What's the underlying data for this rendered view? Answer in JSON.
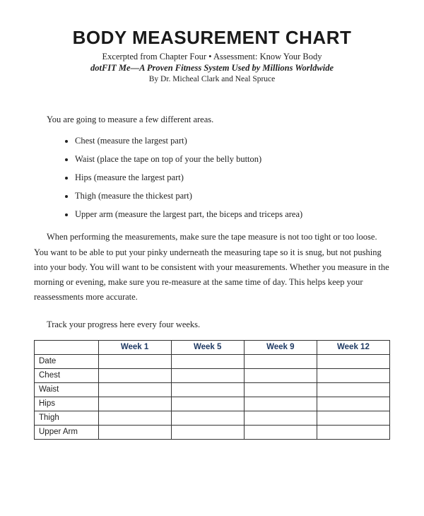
{
  "header": {
    "title": "BODY MEASUREMENT CHART",
    "subtitle_line1": "Excerpted from Chapter Four • Assessment: Know Your Body",
    "subtitle_line2": "dotFIT Me—A Proven Fitness System Used by Millions Worldwide",
    "byline": "By Dr. Micheal Clark and Neal Spruce"
  },
  "intro": "You are going to measure a few different areas.",
  "measurements": [
    "Chest (measure the largest part)",
    "Waist (place the tape on top of your the belly button)",
    "Hips (measure the largest part)",
    "Thigh (measure the thickest part)",
    "Upper arm (measure the largest part, the biceps and triceps area)"
  ],
  "paragraph": "When performing the measurements, make sure the tape measure is not too tight or too loose. You want to be able to put your pinky underneath the measuring tape so it is snug, but not pushing into your body. You will want to be consistent with your measurements. Whether you measure in the morning or evening, make sure you re-measure at the same time of day. This helps keep your reassessments more accurate.",
  "track_text": "Track your progress here every four weeks.",
  "table": {
    "header_color": "#1f3a63",
    "border_color": "#333333",
    "columns": [
      "",
      "Week 1",
      "Week 5",
      "Week 9",
      "Week 12"
    ],
    "rows": [
      {
        "label": "Date",
        "cells": [
          "",
          "",
          "",
          ""
        ]
      },
      {
        "label": "Chest",
        "cells": [
          "",
          "",
          "",
          ""
        ]
      },
      {
        "label": "Waist",
        "cells": [
          "",
          "",
          "",
          ""
        ]
      },
      {
        "label": "Hips",
        "cells": [
          "",
          "",
          "",
          ""
        ]
      },
      {
        "label": "Thigh",
        "cells": [
          "",
          "",
          "",
          ""
        ]
      },
      {
        "label": "Upper Arm",
        "cells": [
          "",
          "",
          "",
          ""
        ]
      }
    ]
  }
}
